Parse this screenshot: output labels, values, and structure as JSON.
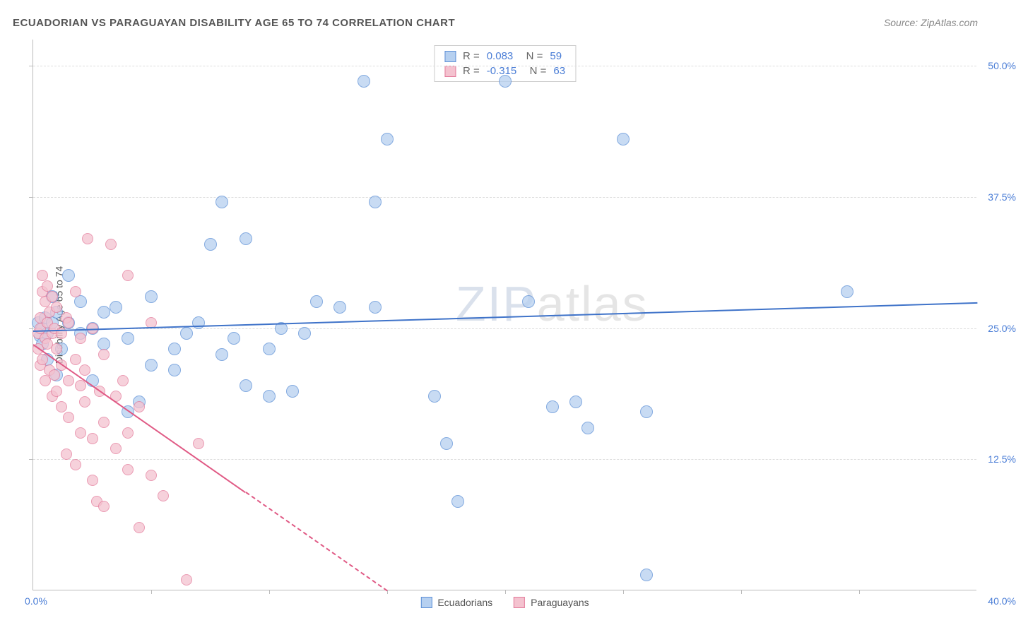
{
  "title": "ECUADORIAN VS PARAGUAYAN DISABILITY AGE 65 TO 74 CORRELATION CHART",
  "source": "Source: ZipAtlas.com",
  "ylabel": "Disability Age 65 to 74",
  "watermark": {
    "a": "ZIP",
    "b": "atlas"
  },
  "chart": {
    "type": "scatter",
    "xlim": [
      0,
      40
    ],
    "ylim": [
      0,
      52.5
    ],
    "xlabel_0": "0.0%",
    "xlabel_max": "40.0%",
    "xticks_minor": [
      5,
      10,
      15,
      20,
      25,
      30,
      35
    ],
    "yticks": [
      {
        "v": 12.5,
        "label": "12.5%"
      },
      {
        "v": 25.0,
        "label": "25.0%"
      },
      {
        "v": 37.5,
        "label": "37.5%"
      },
      {
        "v": 50.0,
        "label": "50.0%"
      }
    ],
    "grid_color": "#dddddd",
    "axis_color": "#bbbbbb",
    "background_color": "#ffffff"
  },
  "series": [
    {
      "name": "Ecuadorians",
      "fill": "#b6d0f0",
      "stroke": "#5c8fd6",
      "opacity": 0.75,
      "radius": 9,
      "r_value": "0.083",
      "n_value": "59",
      "trend": {
        "x1": 0,
        "y1": 24.8,
        "x2": 40,
        "y2": 27.5,
        "color": "#3f73c9",
        "width": 2,
        "solid_until_x": 40
      },
      "points": [
        [
          0.2,
          25.5
        ],
        [
          0.3,
          24.2
        ],
        [
          0.4,
          25.0
        ],
        [
          0.4,
          23.5
        ],
        [
          0.5,
          26.0
        ],
        [
          0.6,
          24.5
        ],
        [
          0.6,
          22.0
        ],
        [
          0.8,
          25.5
        ],
        [
          0.8,
          28.0
        ],
        [
          1.0,
          26.5
        ],
        [
          1.0,
          20.5
        ],
        [
          1.2,
          23.0
        ],
        [
          1.5,
          30.0
        ],
        [
          1.5,
          25.5
        ],
        [
          2.0,
          27.5
        ],
        [
          2.0,
          24.5
        ],
        [
          2.5,
          25.0
        ],
        [
          2.5,
          20.0
        ],
        [
          3.0,
          26.5
        ],
        [
          3.0,
          23.5
        ],
        [
          3.5,
          27.0
        ],
        [
          4.0,
          24.0
        ],
        [
          4.0,
          17.0
        ],
        [
          4.5,
          18.0
        ],
        [
          5.0,
          28.0
        ],
        [
          5.0,
          21.5
        ],
        [
          6.0,
          23.0
        ],
        [
          6.0,
          21.0
        ],
        [
          6.5,
          24.5
        ],
        [
          7.0,
          25.5
        ],
        [
          7.5,
          33.0
        ],
        [
          8.0,
          37.0
        ],
        [
          8.0,
          22.5
        ],
        [
          8.5,
          24.0
        ],
        [
          9.0,
          33.5
        ],
        [
          9.0,
          19.5
        ],
        [
          10.0,
          23.0
        ],
        [
          10.0,
          18.5
        ],
        [
          10.5,
          25.0
        ],
        [
          11.0,
          19.0
        ],
        [
          11.5,
          24.5
        ],
        [
          12.0,
          27.5
        ],
        [
          13.0,
          27.0
        ],
        [
          14.0,
          48.5
        ],
        [
          14.5,
          37.0
        ],
        [
          14.5,
          27.0
        ],
        [
          15.0,
          43.0
        ],
        [
          17.0,
          18.5
        ],
        [
          17.5,
          14.0
        ],
        [
          18.0,
          8.5
        ],
        [
          20.0,
          48.5
        ],
        [
          21.0,
          27.5
        ],
        [
          22.0,
          17.5
        ],
        [
          23.0,
          18.0
        ],
        [
          23.5,
          15.5
        ],
        [
          25.0,
          43.0
        ],
        [
          26.0,
          17.0
        ],
        [
          26.0,
          1.5
        ],
        [
          34.5,
          28.5
        ]
      ]
    },
    {
      "name": "Paraguayans",
      "fill": "#f4c2cf",
      "stroke": "#e37a9a",
      "opacity": 0.75,
      "radius": 8,
      "r_value": "-0.315",
      "n_value": "63",
      "trend": {
        "x1": 0,
        "y1": 23.5,
        "x2": 15,
        "y2": 0,
        "color": "#e05a85",
        "width": 2,
        "solid_until_x": 9
      },
      "points": [
        [
          0.2,
          23.0
        ],
        [
          0.2,
          24.5
        ],
        [
          0.3,
          26.0
        ],
        [
          0.3,
          21.5
        ],
        [
          0.3,
          25.0
        ],
        [
          0.4,
          28.5
        ],
        [
          0.4,
          22.0
        ],
        [
          0.4,
          30.0
        ],
        [
          0.5,
          24.0
        ],
        [
          0.5,
          27.5
        ],
        [
          0.5,
          20.0
        ],
        [
          0.6,
          25.5
        ],
        [
          0.6,
          23.5
        ],
        [
          0.6,
          29.0
        ],
        [
          0.7,
          21.0
        ],
        [
          0.7,
          26.5
        ],
        [
          0.8,
          24.5
        ],
        [
          0.8,
          28.0
        ],
        [
          0.8,
          18.5
        ],
        [
          0.9,
          20.5
        ],
        [
          0.9,
          25.0
        ],
        [
          1.0,
          23.0
        ],
        [
          1.0,
          27.0
        ],
        [
          1.0,
          19.0
        ],
        [
          1.2,
          24.5
        ],
        [
          1.2,
          21.5
        ],
        [
          1.2,
          17.5
        ],
        [
          1.4,
          26.0
        ],
        [
          1.4,
          13.0
        ],
        [
          1.5,
          20.0
        ],
        [
          1.5,
          25.5
        ],
        [
          1.5,
          16.5
        ],
        [
          1.8,
          22.0
        ],
        [
          1.8,
          28.5
        ],
        [
          1.8,
          12.0
        ],
        [
          2.0,
          19.5
        ],
        [
          2.0,
          24.0
        ],
        [
          2.0,
          15.0
        ],
        [
          2.2,
          18.0
        ],
        [
          2.2,
          21.0
        ],
        [
          2.3,
          33.5
        ],
        [
          2.5,
          25.0
        ],
        [
          2.5,
          10.5
        ],
        [
          2.5,
          14.5
        ],
        [
          2.7,
          8.5
        ],
        [
          2.8,
          19.0
        ],
        [
          3.0,
          22.5
        ],
        [
          3.0,
          16.0
        ],
        [
          3.0,
          8.0
        ],
        [
          3.3,
          33.0
        ],
        [
          3.5,
          18.5
        ],
        [
          3.5,
          13.5
        ],
        [
          3.8,
          20.0
        ],
        [
          4.0,
          30.0
        ],
        [
          4.0,
          11.5
        ],
        [
          4.0,
          15.0
        ],
        [
          4.5,
          17.5
        ],
        [
          4.5,
          6.0
        ],
        [
          5.0,
          25.5
        ],
        [
          5.0,
          11.0
        ],
        [
          5.5,
          9.0
        ],
        [
          6.5,
          1.0
        ],
        [
          7.0,
          14.0
        ]
      ]
    }
  ],
  "legend": {
    "series1_label": "Ecuadorians",
    "series2_label": "Paraguayans"
  },
  "colors": {
    "tick_label": "#4a7dd6",
    "stat_text": "#666666",
    "stat_value": "#4a7dd6"
  }
}
